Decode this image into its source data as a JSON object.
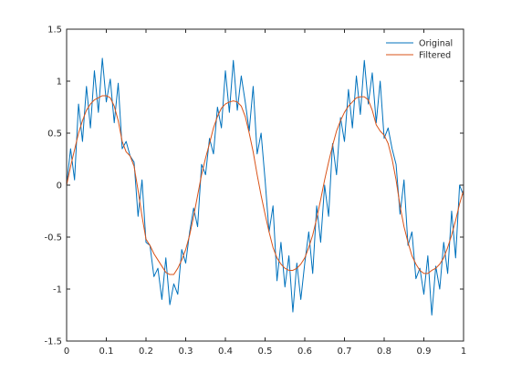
{
  "chart_data": {
    "type": "line",
    "title": "",
    "xlabel": "",
    "ylabel": "",
    "xlim": [
      0,
      1
    ],
    "ylim": [
      -1.5,
      1.5
    ],
    "grid": false,
    "legend_position": "top-right",
    "x_ticks": [
      0,
      0.1,
      0.2,
      0.3,
      0.4,
      0.5,
      0.6,
      0.7,
      0.8,
      0.9,
      1
    ],
    "x_tick_labels": [
      "0",
      "0.1",
      "0.2",
      "0.3",
      "0.4",
      "0.5",
      "0.6",
      "0.7",
      "0.8",
      "0.9",
      "1"
    ],
    "y_ticks": [
      -1.5,
      -1,
      -0.5,
      0,
      0.5,
      1,
      1.5
    ],
    "y_tick_labels": [
      "-1.5",
      "-1",
      "-0.5",
      "0",
      "0.5",
      "1",
      "1.5"
    ],
    "x": [
      0,
      0.01,
      0.02,
      0.03,
      0.04,
      0.05,
      0.06,
      0.07,
      0.08,
      0.09,
      0.1,
      0.11,
      0.12,
      0.13,
      0.14,
      0.15,
      0.16,
      0.17,
      0.18,
      0.19,
      0.2,
      0.21,
      0.22,
      0.23,
      0.24,
      0.25,
      0.26,
      0.27,
      0.28,
      0.29,
      0.3,
      0.31,
      0.32,
      0.33,
      0.34,
      0.35,
      0.36,
      0.37,
      0.38,
      0.39,
      0.4,
      0.41,
      0.42,
      0.43,
      0.44,
      0.45,
      0.46,
      0.47,
      0.48,
      0.49,
      0.5,
      0.51,
      0.52,
      0.53,
      0.54,
      0.55,
      0.56,
      0.57,
      0.58,
      0.59,
      0.6,
      0.61,
      0.62,
      0.63,
      0.64,
      0.65,
      0.66,
      0.67,
      0.68,
      0.69,
      0.7,
      0.71,
      0.72,
      0.73,
      0.74,
      0.75,
      0.76,
      0.77,
      0.78,
      0.79,
      0.8,
      0.81,
      0.82,
      0.83,
      0.84,
      0.85,
      0.86,
      0.87,
      0.88,
      0.89,
      0.9,
      0.91,
      0.92,
      0.93,
      0.94,
      0.95,
      0.96,
      0.97,
      0.98,
      0.99,
      1.0
    ],
    "series": [
      {
        "name": "Original",
        "color": "#0072BD",
        "values": [
          0.0,
          0.35,
          0.05,
          0.78,
          0.42,
          0.95,
          0.55,
          1.1,
          0.7,
          1.22,
          0.8,
          1.02,
          0.6,
          0.98,
          0.35,
          0.42,
          0.28,
          0.22,
          -0.3,
          0.05,
          -0.55,
          -0.58,
          -0.88,
          -0.8,
          -1.1,
          -0.7,
          -1.15,
          -0.95,
          -1.05,
          -0.62,
          -0.75,
          -0.45,
          -0.22,
          -0.4,
          0.2,
          0.1,
          0.45,
          0.3,
          0.75,
          0.55,
          1.1,
          0.7,
          1.2,
          0.72,
          1.05,
          0.8,
          0.52,
          0.95,
          0.3,
          0.5,
          0.05,
          -0.45,
          -0.2,
          -0.92,
          -0.55,
          -0.98,
          -0.68,
          -1.22,
          -0.75,
          -1.1,
          -0.75,
          -0.45,
          -0.85,
          -0.2,
          -0.55,
          0.0,
          -0.3,
          0.4,
          0.1,
          0.65,
          0.42,
          0.92,
          0.55,
          1.05,
          0.68,
          1.2,
          0.78,
          1.08,
          0.6,
          1.0,
          0.45,
          0.55,
          0.35,
          0.2,
          -0.28,
          0.05,
          -0.58,
          -0.45,
          -0.9,
          -0.8,
          -1.05,
          -0.68,
          -1.25,
          -0.78,
          -1.0,
          -0.55,
          -0.85,
          -0.25,
          -0.7,
          0.0,
          -0.1
        ]
      },
      {
        "name": "Filtered",
        "color": "#D95319",
        "values": [
          0.0,
          0.18,
          0.34,
          0.5,
          0.62,
          0.72,
          0.78,
          0.82,
          0.84,
          0.86,
          0.86,
          0.84,
          0.76,
          0.62,
          0.42,
          0.32,
          0.28,
          0.18,
          -0.05,
          -0.3,
          -0.52,
          -0.58,
          -0.66,
          -0.72,
          -0.78,
          -0.84,
          -0.86,
          -0.86,
          -0.8,
          -0.72,
          -0.62,
          -0.48,
          -0.3,
          -0.1,
          0.1,
          0.26,
          0.4,
          0.55,
          0.66,
          0.74,
          0.78,
          0.8,
          0.81,
          0.8,
          0.76,
          0.66,
          0.5,
          0.32,
          0.1,
          -0.1,
          -0.28,
          -0.45,
          -0.6,
          -0.7,
          -0.76,
          -0.8,
          -0.82,
          -0.82,
          -0.8,
          -0.76,
          -0.7,
          -0.6,
          -0.48,
          -0.32,
          -0.14,
          0.05,
          0.22,
          0.38,
          0.52,
          0.62,
          0.7,
          0.76,
          0.8,
          0.84,
          0.85,
          0.85,
          0.82,
          0.72,
          0.58,
          0.52,
          0.48,
          0.4,
          0.25,
          0.05,
          -0.2,
          -0.4,
          -0.55,
          -0.68,
          -0.76,
          -0.82,
          -0.85,
          -0.85,
          -0.82,
          -0.8,
          -0.76,
          -0.7,
          -0.6,
          -0.48,
          -0.34,
          -0.18,
          -0.05
        ]
      }
    ]
  }
}
